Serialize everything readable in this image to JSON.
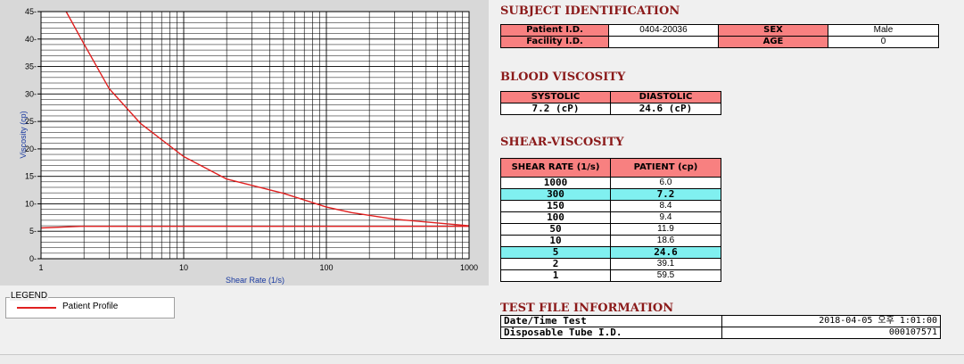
{
  "chart_data": {
    "type": "line",
    "xlabel": "Shear Rate (1/s)",
    "ylabel": "Viscosity (cp)",
    "xscale": "log",
    "xlim": [
      1,
      1000
    ],
    "ylim": [
      0,
      45
    ],
    "xticks": [
      "1",
      "10",
      "100",
      "1000"
    ],
    "yticks": [
      "0",
      "5",
      "10",
      "15",
      "20",
      "25",
      "30",
      "35",
      "40",
      "45"
    ],
    "grid": true,
    "series": [
      {
        "name": "Patient Profile",
        "color": "#e02020",
        "x": [
          1.5,
          2,
          3,
          5,
          10,
          20,
          50,
          100,
          150,
          300,
          1000
        ],
        "y": [
          45,
          39.1,
          31,
          24.6,
          18.6,
          14.5,
          11.9,
          9.4,
          8.4,
          7.2,
          6.0
        ]
      },
      {
        "name": "",
        "color": "#e02020",
        "x": [
          1,
          1.9,
          40,
          1000
        ],
        "y": [
          5.6,
          5.9,
          5.9,
          5.9
        ]
      }
    ]
  },
  "legend": {
    "title": "LEGEND",
    "label": "Patient Profile"
  },
  "subject": {
    "title": "SUBJECT IDENTIFICATION",
    "patient_id_label": "Patient I.D.",
    "patient_id": "0404-20036",
    "facility_id_label": "Facility I.D.",
    "facility_id": "",
    "sex_label": "SEX",
    "sex": "Male",
    "age_label": "AGE",
    "age": "0"
  },
  "blood": {
    "title": "BLOOD VISCOSITY",
    "systolic_label": "SYSTOLIC",
    "diastolic_label": "DIASTOLIC",
    "systolic": "7.2 (cP)",
    "diastolic": "24.6 (cP)"
  },
  "shear": {
    "title": "SHEAR-VISCOSITY",
    "col_rate": "SHEAR RATE (1/s)",
    "col_patient": "PATIENT (cp)",
    "rows": [
      {
        "rate": "1000",
        "value": "6.0"
      },
      {
        "rate": "300",
        "value": "7.2"
      },
      {
        "rate": "150",
        "value": "8.4"
      },
      {
        "rate": "100",
        "value": "9.4"
      },
      {
        "rate": "50",
        "value": "11.9"
      },
      {
        "rate": "10",
        "value": "18.6"
      },
      {
        "rate": "5",
        "value": "24.6"
      },
      {
        "rate": "2",
        "value": "39.1"
      },
      {
        "rate": "1",
        "value": "59.5"
      }
    ]
  },
  "testfile": {
    "title": "TEST FILE INFORMATION",
    "date_label": "Date/Time Test",
    "date_value": "2018-04-05  오후 1:01:00",
    "tube_label": "Disposable Tube I.D.",
    "tube_value": "000107571"
  }
}
